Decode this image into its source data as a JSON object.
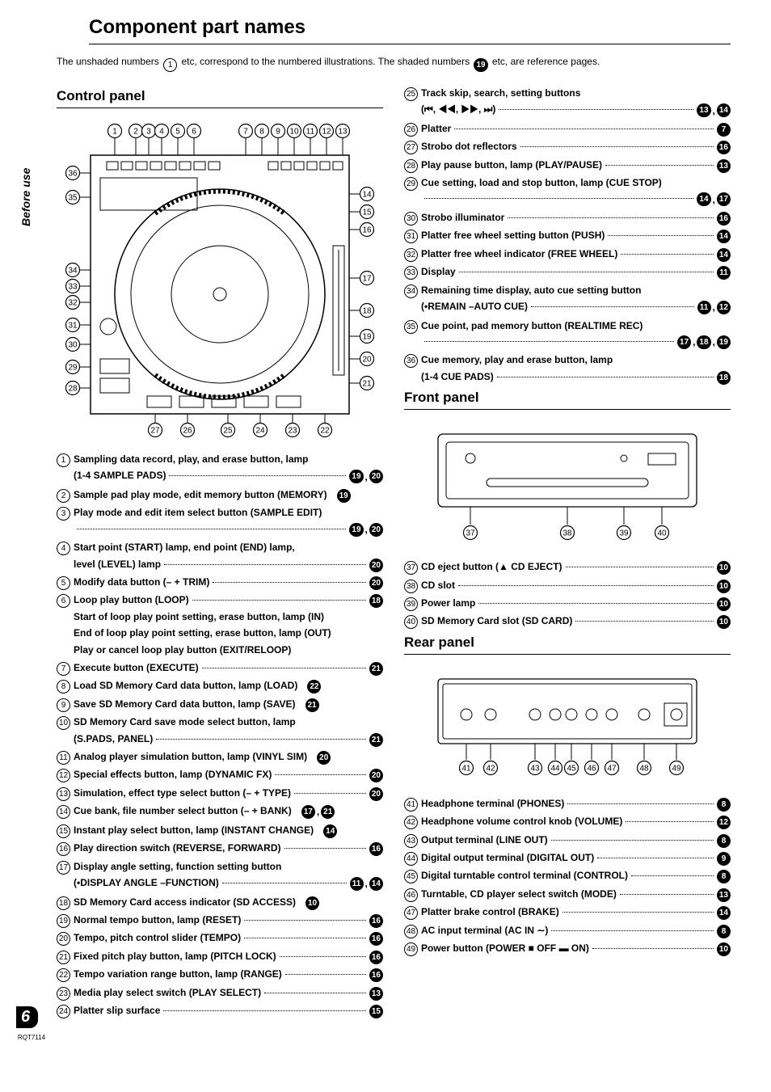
{
  "sideLabel": "Before use",
  "title": "Component part names",
  "intro": {
    "t1": "The unshaded numbers",
    "unEx": "1",
    "t2": "etc, correspond to the numbered illustrations. The shaded numbers",
    "shEx": "19",
    "t3": "etc, are reference pages."
  },
  "sections": {
    "control": "Control panel",
    "front": "Front panel",
    "rear": "Rear panel"
  },
  "diagrams": {
    "controlTop": [
      1,
      2,
      3,
      4,
      5,
      6,
      7,
      8,
      9,
      10,
      11,
      12,
      13
    ],
    "controlLeft": [
      36,
      35,
      34,
      33,
      32,
      31,
      30,
      29,
      28
    ],
    "controlRight": [
      14,
      15,
      16,
      17,
      18,
      19,
      20,
      21
    ],
    "controlBottom": [
      27,
      26,
      25,
      24,
      23,
      22
    ],
    "front": [
      37,
      38,
      39,
      40
    ],
    "rear": [
      41,
      42,
      43,
      44,
      45,
      46,
      47,
      48,
      49
    ]
  },
  "leftItems": [
    {
      "n": 1,
      "text": "Sampling data record, play, and erase button, lamp",
      "cont": "(1-4 SAMPLE PADS)",
      "refs": [
        19,
        20
      ]
    },
    {
      "n": 2,
      "text": "Sample pad play mode, edit memory button (MEMORY)",
      "refs": [
        19
      ],
      "noDots": true
    },
    {
      "n": 3,
      "text": "Play mode and edit item select button (SAMPLE EDIT)",
      "contDotsOnly": true,
      "refs": [
        19,
        20
      ]
    },
    {
      "n": 4,
      "text": "Start point (START) lamp, end point (END) lamp,",
      "cont": "level (LEVEL) lamp",
      "refs": [
        20
      ]
    },
    {
      "n": 5,
      "text": "Modify data button (– + TRIM)",
      "refs": [
        20
      ]
    },
    {
      "n": 6,
      "text": "Loop play button (LOOP)",
      "refs": [
        18
      ],
      "subs": [
        "Start of loop play point setting, erase button, lamp (IN)",
        "End of loop play point setting, erase button, lamp (OUT)",
        "Play or cancel loop play button (EXIT/RELOOP)"
      ]
    },
    {
      "n": 7,
      "text": "Execute button (EXECUTE)",
      "refs": [
        21
      ]
    },
    {
      "n": 8,
      "text": "Load SD Memory Card data button, lamp (LOAD)",
      "refs": [
        22
      ],
      "noDots": true
    },
    {
      "n": 9,
      "text": "Save SD Memory Card data button, lamp (SAVE)",
      "refs": [
        21
      ],
      "noDots": true
    },
    {
      "n": 10,
      "text": "SD Memory Card save mode select button, lamp",
      "cont": "(S.PADS, PANEL)",
      "refs": [
        21
      ]
    },
    {
      "n": 11,
      "text": "Analog player simulation button, lamp (VINYL SIM)",
      "refs": [
        20
      ],
      "noDots": true
    },
    {
      "n": 12,
      "text": "Special effects button, lamp (DYNAMIC FX)",
      "refs": [
        20
      ]
    },
    {
      "n": 13,
      "text": "Simulation, effect type select button (– + TYPE)",
      "refs": [
        20
      ]
    },
    {
      "n": 14,
      "text": "Cue bank, file number select button (– + BANK)",
      "refs": [
        17,
        21
      ],
      "noDots": true
    },
    {
      "n": 15,
      "text": "Instant play select button, lamp (INSTANT CHANGE)",
      "refs": [
        14
      ],
      "noDots": true
    },
    {
      "n": 16,
      "text": "Play direction switch (REVERSE, FORWARD)",
      "refs": [
        16
      ]
    },
    {
      "n": 17,
      "text": "Display angle setting, function setting button",
      "cont": "(•DISPLAY ANGLE –FUNCTION)",
      "refs": [
        11,
        14
      ]
    },
    {
      "n": 18,
      "text": "SD Memory Card access indicator (SD ACCESS)",
      "refs": [
        10
      ],
      "noDots": true
    },
    {
      "n": 19,
      "text": "Normal tempo button, lamp (RESET)",
      "refs": [
        16
      ]
    },
    {
      "n": 20,
      "text": "Tempo, pitch control slider (TEMPO)",
      "refs": [
        16
      ]
    },
    {
      "n": 21,
      "text": "Fixed pitch play button, lamp (PITCH LOCK)",
      "refs": [
        16
      ]
    },
    {
      "n": 22,
      "text": "Tempo variation range button, lamp (RANGE)",
      "refs": [
        16
      ]
    },
    {
      "n": 23,
      "text": "Media play select switch (PLAY SELECT)",
      "refs": [
        13
      ]
    },
    {
      "n": 24,
      "text": "Platter slip surface",
      "refs": [
        15
      ]
    }
  ],
  "rightItemsA": [
    {
      "n": 25,
      "text": "Track skip, search, setting buttons",
      "cont": "(⏮, ◀◀, ▶▶, ⏭)",
      "refs": [
        13,
        14
      ]
    },
    {
      "n": 26,
      "text": "Platter",
      "refs": [
        7
      ]
    },
    {
      "n": 27,
      "text": "Strobo dot reflectors",
      "refs": [
        16
      ]
    },
    {
      "n": 28,
      "text": "Play pause button, lamp (PLAY/PAUSE)",
      "refs": [
        13
      ]
    },
    {
      "n": 29,
      "text": "Cue setting, load and stop button, lamp (CUE STOP)",
      "contDotsOnly": true,
      "refs": [
        14,
        17
      ]
    },
    {
      "n": 30,
      "text": "Strobo illuminator",
      "refs": [
        16
      ]
    },
    {
      "n": 31,
      "text": "Platter free wheel setting button (PUSH)",
      "refs": [
        14
      ]
    },
    {
      "n": 32,
      "text": "Platter free wheel indicator (FREE WHEEL)",
      "refs": [
        14
      ]
    },
    {
      "n": 33,
      "text": "Display",
      "refs": [
        11
      ]
    },
    {
      "n": 34,
      "text": "Remaining time display, auto cue setting button",
      "cont": "(•REMAIN –AUTO CUE)",
      "refs": [
        11,
        12
      ]
    },
    {
      "n": 35,
      "text": "Cue point, pad memory button (REALTIME REC)",
      "contDotsOnly": true,
      "refs": [
        17,
        18,
        19
      ]
    },
    {
      "n": 36,
      "text": "Cue memory, play and erase button, lamp",
      "cont": "(1-4 CUE PADS)",
      "refs": [
        18
      ]
    }
  ],
  "frontItems": [
    {
      "n": 37,
      "text": "CD eject button (▲ CD EJECT)",
      "refs": [
        10
      ]
    },
    {
      "n": 38,
      "text": "CD slot",
      "refs": [
        10
      ]
    },
    {
      "n": 39,
      "text": "Power lamp",
      "refs": [
        10
      ]
    },
    {
      "n": 40,
      "text": "SD Memory Card slot (SD CARD)",
      "refs": [
        10
      ]
    }
  ],
  "rearItems": [
    {
      "n": 41,
      "text": "Headphone terminal (PHONES)",
      "refs": [
        8
      ]
    },
    {
      "n": 42,
      "text": "Headphone volume control knob (VOLUME)",
      "refs": [
        12
      ]
    },
    {
      "n": 43,
      "text": "Output terminal (LINE OUT)",
      "refs": [
        8
      ]
    },
    {
      "n": 44,
      "text": "Digital output terminal (DIGITAL OUT)",
      "refs": [
        9
      ]
    },
    {
      "n": 45,
      "text": "Digital turntable control terminal (CONTROL)",
      "refs": [
        8
      ]
    },
    {
      "n": 46,
      "text": "Turntable, CD player select switch (MODE)",
      "refs": [
        13
      ]
    },
    {
      "n": 47,
      "text": "Platter brake control (BRAKE)",
      "refs": [
        14
      ]
    },
    {
      "n": 48,
      "text": "AC input terminal (AC IN ∼)",
      "refs": [
        8
      ]
    },
    {
      "n": 49,
      "text": "Power button (POWER ■ OFF ▬ ON)",
      "refs": [
        10
      ]
    }
  ],
  "pageNum": "6",
  "pageCode": "RQT7114"
}
